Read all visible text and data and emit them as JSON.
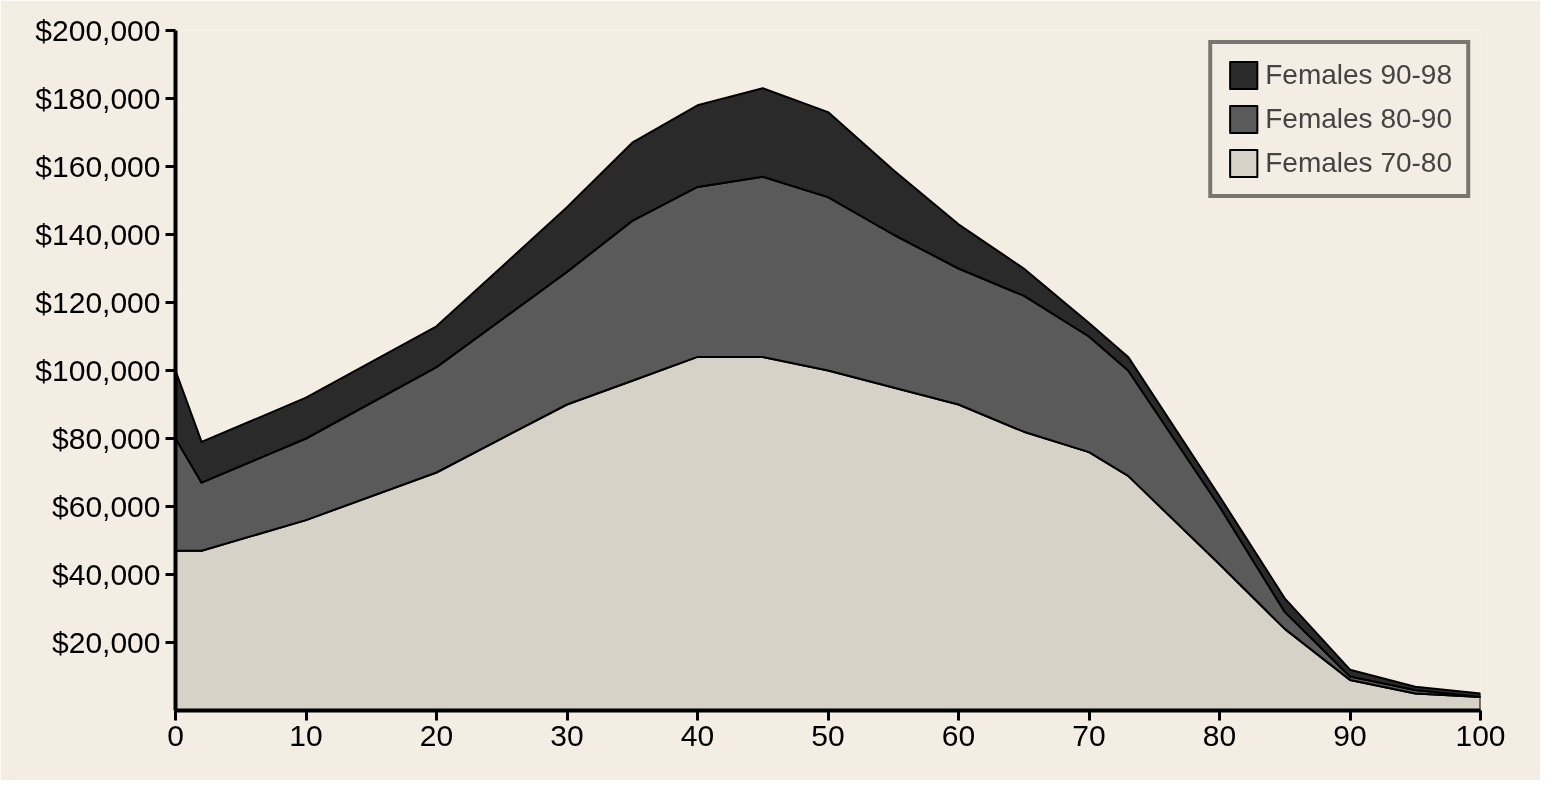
{
  "chart_data": {
    "type": "area",
    "stacked": true,
    "x": [
      0,
      2,
      10,
      20,
      30,
      35,
      40,
      45,
      50,
      55,
      60,
      65,
      70,
      73,
      80,
      85,
      90,
      95,
      100
    ],
    "xlim": [
      0,
      100
    ],
    "xticks": [
      0,
      10,
      20,
      30,
      40,
      50,
      60,
      70,
      80,
      90,
      100
    ],
    "ylim": [
      0,
      200000
    ],
    "yticks": [
      {
        "value": 20000,
        "label": "$20,000"
      },
      {
        "value": 40000,
        "label": "$40,000"
      },
      {
        "value": 60000,
        "label": "$60,000"
      },
      {
        "value": 80000,
        "label": "$80,000"
      },
      {
        "value": 100000,
        "label": "$100,000"
      },
      {
        "value": 120000,
        "label": "$120,000"
      },
      {
        "value": 140000,
        "label": "$140,000"
      },
      {
        "value": 160000,
        "label": "$160,000"
      },
      {
        "value": 180000,
        "label": "$180,000"
      },
      {
        "value": 200000,
        "label": "$200,000"
      }
    ],
    "grid": false,
    "legend": "top right",
    "series": [
      {
        "name": "Females 70-80",
        "color": "#d6d2c8",
        "values": [
          47000,
          47000,
          56000,
          70000,
          90000,
          97000,
          104000,
          104000,
          100000,
          95000,
          90000,
          82000,
          76000,
          69000,
          43000,
          24000,
          9000,
          5000,
          4000
        ]
      },
      {
        "name": "Females 80-90",
        "color": "#5a5a5a",
        "values": [
          33000,
          20000,
          24000,
          31000,
          39000,
          47000,
          50000,
          53000,
          51000,
          45000,
          40000,
          40000,
          34000,
          31000,
          17000,
          5000,
          1000,
          1000,
          0
        ]
      },
      {
        "name": "Females 90-98",
        "color": "#2a2a2a",
        "values": [
          20000,
          12000,
          12000,
          12000,
          19000,
          23000,
          24000,
          26000,
          25000,
          19000,
          13000,
          8000,
          4000,
          4000,
          3000,
          4000,
          2000,
          1000,
          1000
        ]
      }
    ]
  }
}
